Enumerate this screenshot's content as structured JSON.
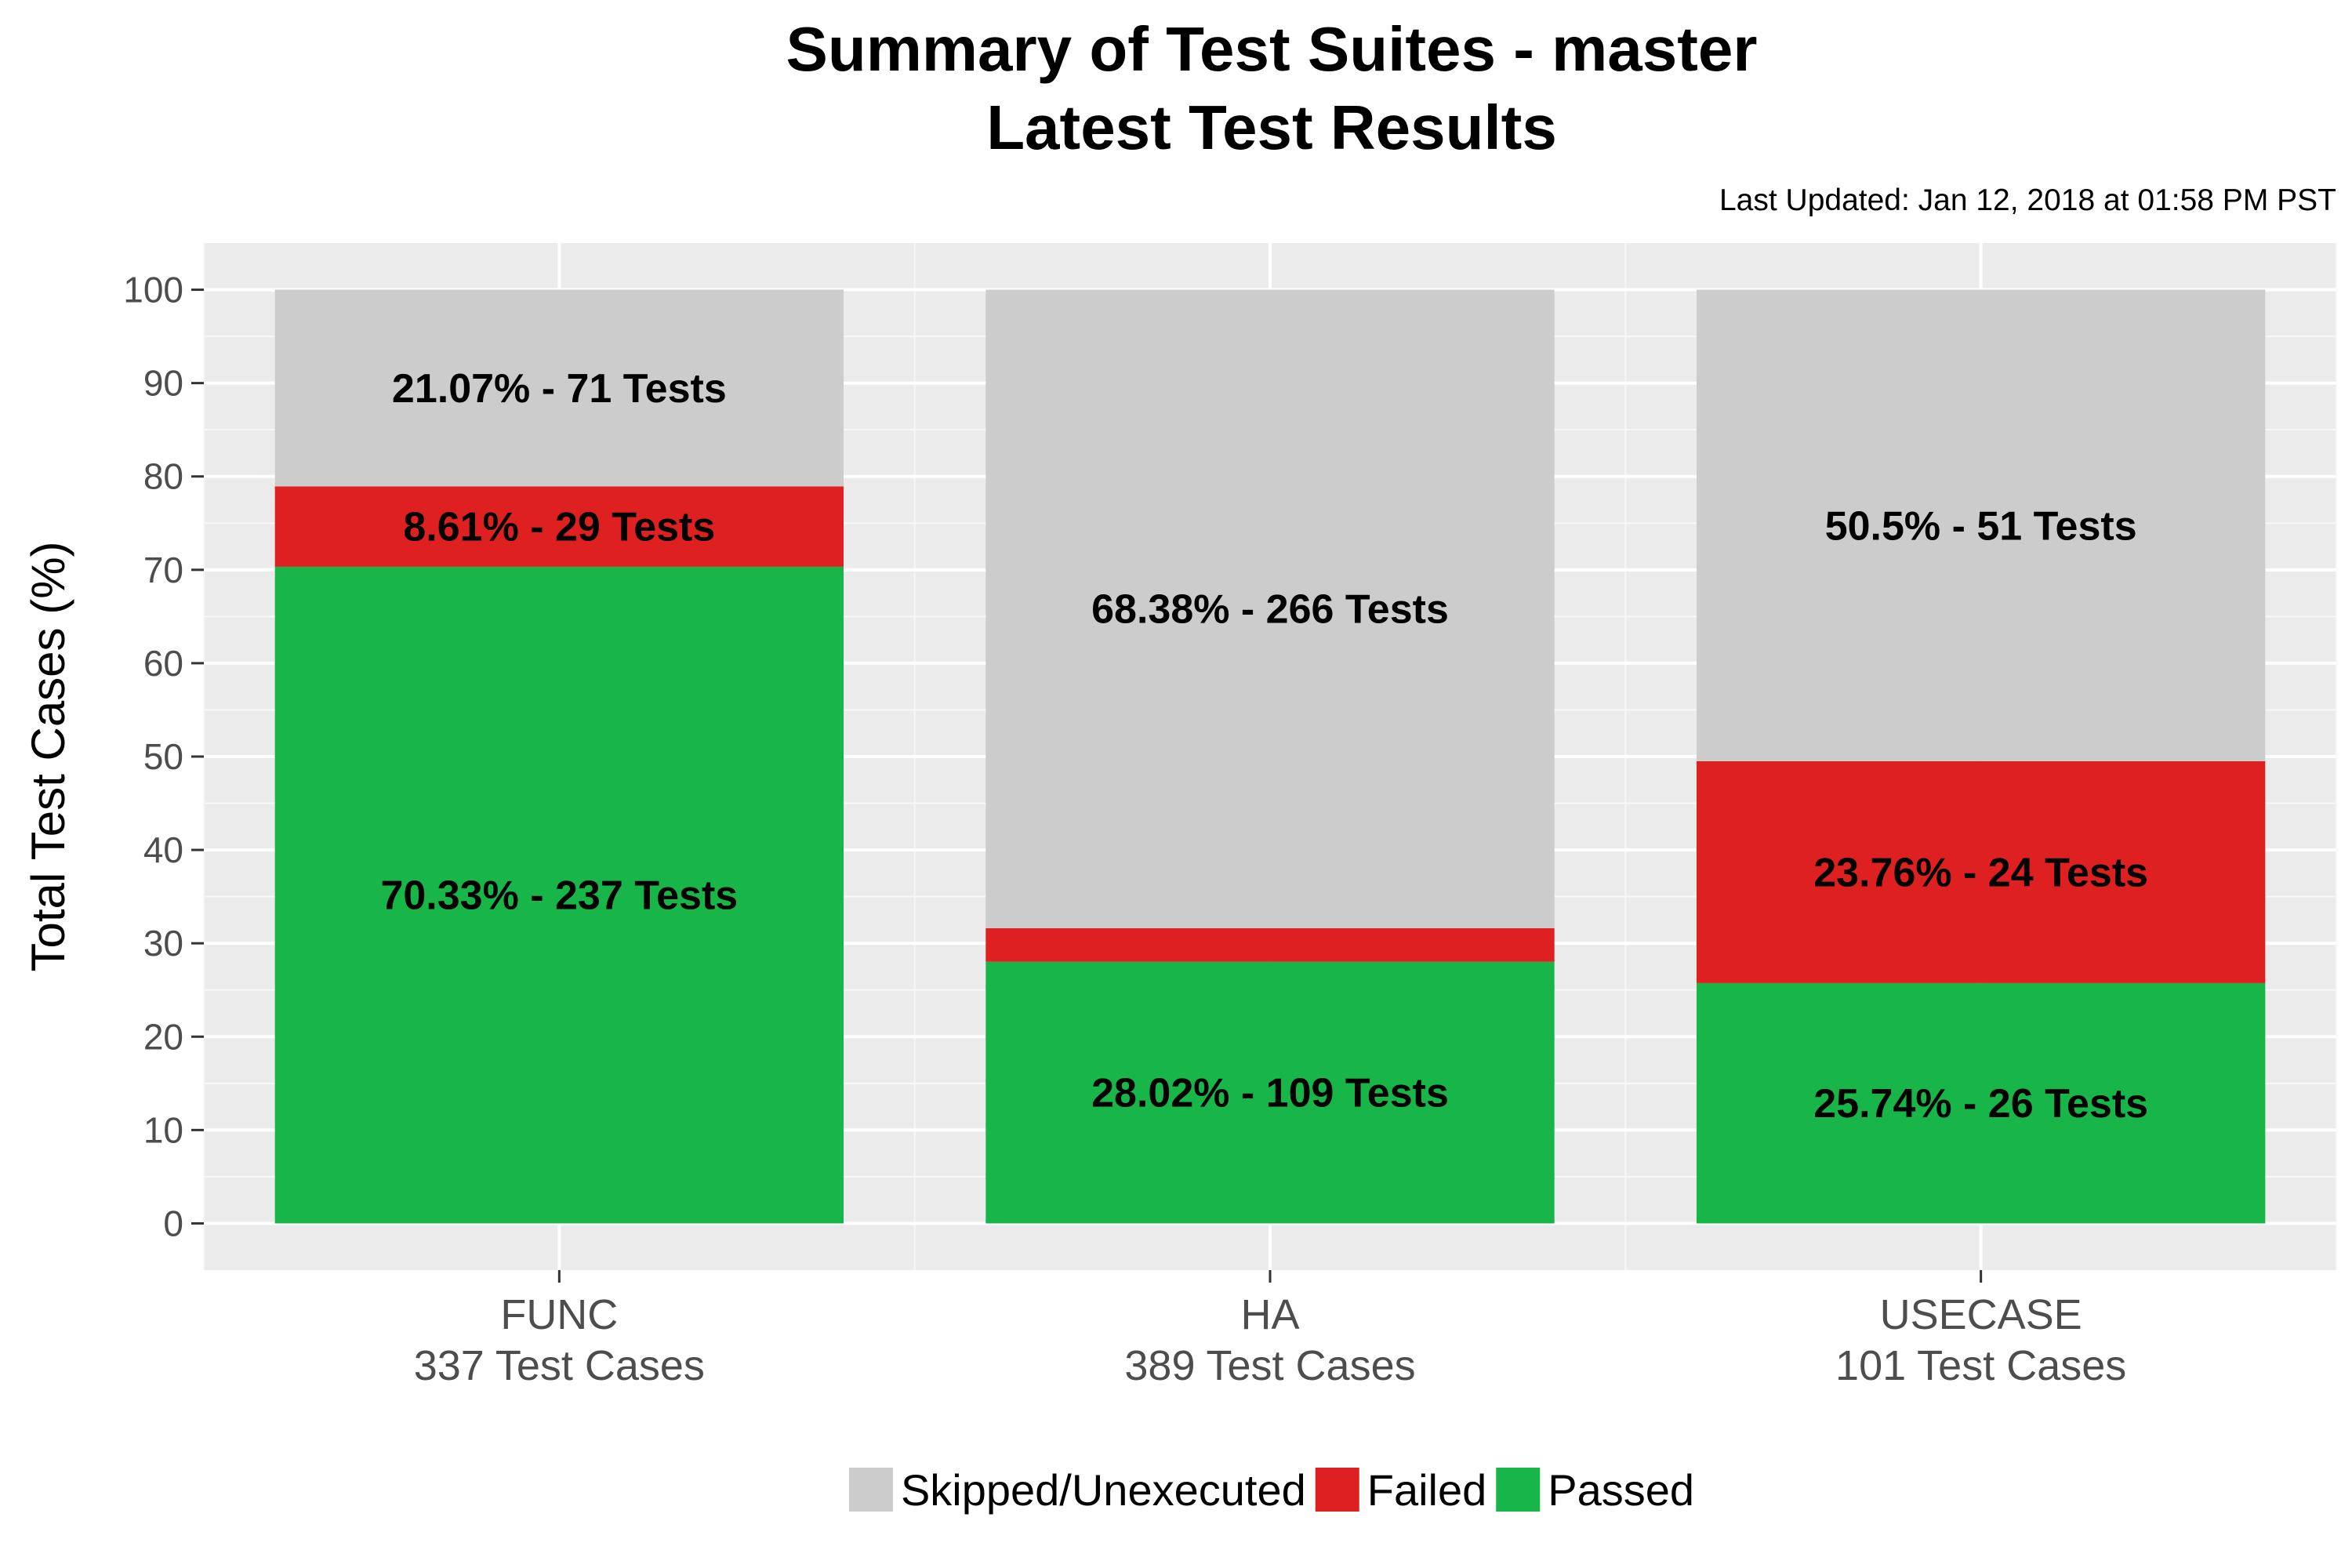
{
  "chart_data": {
    "type": "bar",
    "stacked": true,
    "title": "Summary of Test Suites - master",
    "subtitle": "Latest Test Results",
    "caption": "Last Updated: Jan 12, 2018 at 01:58 PM PST",
    "xlabel": "",
    "ylabel": "Total Test Cases (%)",
    "ylim": [
      -5,
      105
    ],
    "yticks": [
      0,
      10,
      20,
      30,
      40,
      50,
      60,
      70,
      80,
      90,
      100
    ],
    "grid": true,
    "legend_position": "bottom",
    "categories": [
      "FUNC",
      "HA",
      "USECASE"
    ],
    "category_sublabels": [
      "337 Test Cases",
      "389 Test Cases",
      "101 Test Cases"
    ],
    "series": [
      {
        "name": "Passed",
        "color": "#18b548",
        "values": [
          70.33,
          28.02,
          25.74
        ],
        "labels": [
          "70.33% - 237 Tests",
          "28.02% - 109 Tests",
          "25.74% - 26 Tests"
        ]
      },
      {
        "name": "Failed",
        "color": "#de2020",
        "values": [
          8.61,
          3.6,
          23.76
        ],
        "labels": [
          "8.61% - 29 Tests",
          "",
          "23.76% - 24 Tests"
        ]
      },
      {
        "name": "Skipped/Unexecuted",
        "color": "#cccccc",
        "values": [
          21.07,
          68.38,
          50.5
        ],
        "labels": [
          "21.07% - 71 Tests",
          "68.38% - 266 Tests",
          "50.5% - 51 Tests"
        ]
      }
    ],
    "legend_order": [
      "Skipped/Unexecuted",
      "Failed",
      "Passed"
    ]
  }
}
